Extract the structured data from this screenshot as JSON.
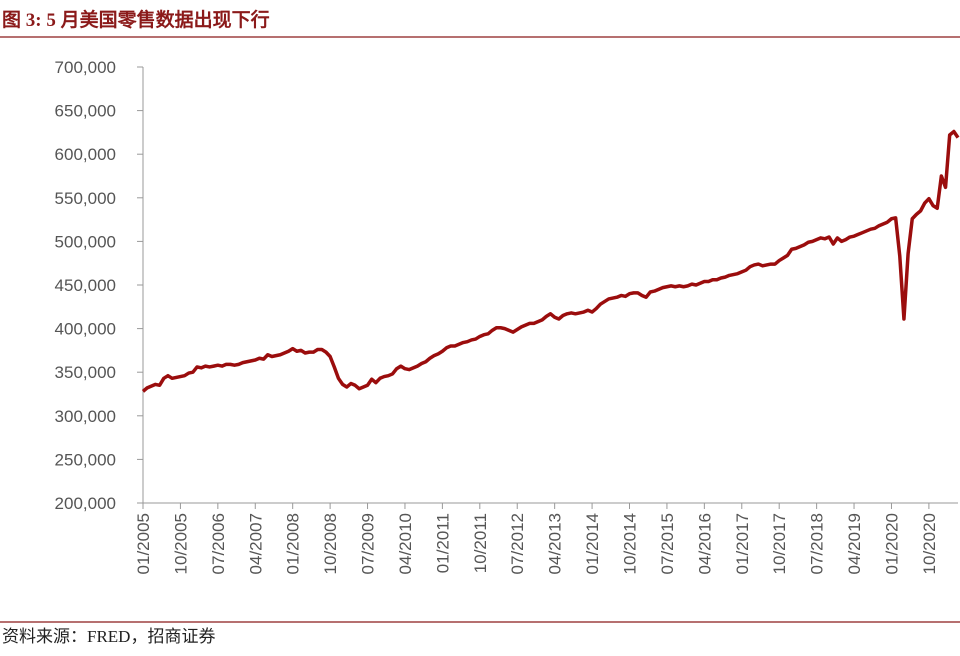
{
  "chart_data": {
    "type": "line",
    "title": "图 3: 5 月美国零售数据出现下行",
    "source": "资料来源：FRED，招商证券",
    "categories": [
      "01/2005",
      null,
      null,
      null,
      null,
      null,
      null,
      null,
      null,
      "10/2005",
      null,
      null,
      null,
      null,
      null,
      null,
      null,
      null,
      "07/2006",
      null,
      null,
      null,
      null,
      null,
      null,
      null,
      null,
      "04/2007",
      null,
      null,
      null,
      null,
      null,
      null,
      null,
      null,
      "01/2008",
      null,
      null,
      null,
      null,
      null,
      null,
      null,
      null,
      "10/2008",
      null,
      null,
      null,
      null,
      null,
      null,
      null,
      null,
      "07/2009",
      null,
      null,
      null,
      null,
      null,
      null,
      null,
      null,
      "04/2010",
      null,
      null,
      null,
      null,
      null,
      null,
      null,
      null,
      "01/2011",
      null,
      null,
      null,
      null,
      null,
      null,
      null,
      null,
      "10/2011",
      null,
      null,
      null,
      null,
      null,
      null,
      null,
      null,
      "07/2012",
      null,
      null,
      null,
      null,
      null,
      null,
      null,
      null,
      "04/2013",
      null,
      null,
      null,
      null,
      null,
      null,
      null,
      null,
      "01/2014",
      null,
      null,
      null,
      null,
      null,
      null,
      null,
      null,
      "10/2014",
      null,
      null,
      null,
      null,
      null,
      null,
      null,
      null,
      "07/2015",
      null,
      null,
      null,
      null,
      null,
      null,
      null,
      null,
      "04/2016",
      null,
      null,
      null,
      null,
      null,
      null,
      null,
      null,
      "01/2017",
      null,
      null,
      null,
      null,
      null,
      null,
      null,
      null,
      "10/2017",
      null,
      null,
      null,
      null,
      null,
      null,
      null,
      null,
      "07/2018",
      null,
      null,
      null,
      null,
      null,
      null,
      null,
      null,
      "04/2019",
      null,
      null,
      null,
      null,
      null,
      null,
      null,
      null,
      "01/2020",
      null,
      null,
      null,
      null,
      null,
      null,
      null,
      null,
      "10/2020",
      null,
      null,
      null,
      null,
      null,
      null,
      null
    ],
    "values": [
      328000,
      332000,
      334000,
      336000,
      335000,
      343000,
      346000,
      343000,
      344000,
      345000,
      346000,
      349000,
      350000,
      356000,
      355000,
      357000,
      356000,
      357000,
      358000,
      357000,
      359000,
      359000,
      358000,
      359000,
      361000,
      362000,
      363000,
      364000,
      366000,
      365000,
      370000,
      368000,
      369000,
      370000,
      372000,
      374000,
      377000,
      374000,
      375000,
      372000,
      373000,
      373000,
      376000,
      376000,
      373000,
      368000,
      356000,
      343000,
      336000,
      333000,
      337000,
      335000,
      331000,
      333000,
      335000,
      342000,
      338000,
      343000,
      345000,
      346000,
      348000,
      354000,
      357000,
      354000,
      353000,
      355000,
      357000,
      360000,
      362000,
      366000,
      369000,
      371000,
      374000,
      378000,
      380000,
      380000,
      382000,
      384000,
      385000,
      387000,
      388000,
      391000,
      393000,
      394000,
      398000,
      401000,
      401000,
      400000,
      398000,
      396000,
      399000,
      402000,
      404000,
      406000,
      406000,
      408000,
      410000,
      414000,
      417000,
      413000,
      411000,
      415000,
      417000,
      418000,
      417000,
      418000,
      419000,
      421000,
      419000,
      423000,
      428000,
      431000,
      434000,
      435000,
      436000,
      438000,
      437000,
      440000,
      441000,
      441000,
      438000,
      436000,
      442000,
      443000,
      445000,
      447000,
      448000,
      449000,
      448000,
      449000,
      448000,
      449000,
      451000,
      450000,
      452000,
      454000,
      454000,
      456000,
      456000,
      458000,
      459000,
      461000,
      462000,
      463000,
      465000,
      467000,
      471000,
      473000,
      474000,
      472000,
      473000,
      474000,
      474000,
      478000,
      481000,
      484000,
      491000,
      492000,
      494000,
      496000,
      499000,
      500000,
      502000,
      504000,
      503000,
      505000,
      497000,
      504000,
      500000,
      502000,
      505000,
      506000,
      508000,
      510000,
      512000,
      514000,
      515000,
      518000,
      520000,
      522000,
      526000,
      527000,
      483000,
      411000,
      486000,
      526000,
      531000,
      535000,
      544000,
      549000,
      541000,
      538000,
      575000,
      562000,
      622000,
      626000,
      619000
    ],
    "color": "#9b0d0d",
    "ylim": [
      200000,
      700000
    ],
    "yticks": [
      {
        "value": 200000,
        "label": "200,000"
      },
      {
        "value": 250000,
        "label": "250,000"
      },
      {
        "value": 300000,
        "label": "300,000"
      },
      {
        "value": 350000,
        "label": "350,000"
      },
      {
        "value": 400000,
        "label": "400,000"
      },
      {
        "value": 450000,
        "label": "450,000"
      },
      {
        "value": 500000,
        "label": "500,000"
      },
      {
        "value": 550000,
        "label": "550,000"
      },
      {
        "value": 600000,
        "label": "600,000"
      },
      {
        "value": 650000,
        "label": "650,000"
      },
      {
        "value": 700000,
        "label": "700,000"
      }
    ]
  }
}
